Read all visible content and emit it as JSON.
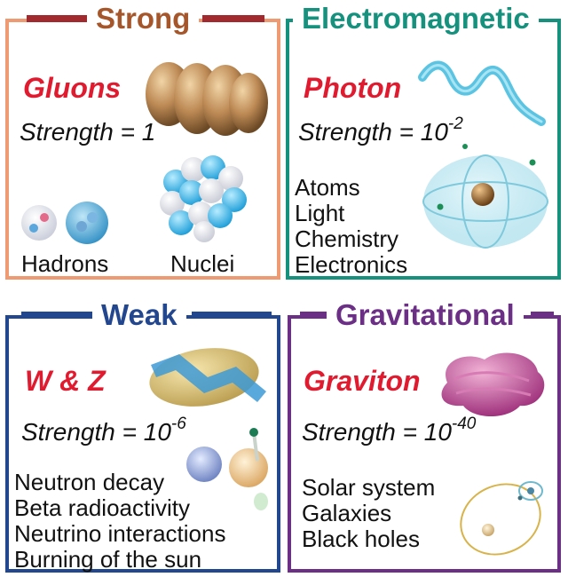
{
  "colors": {
    "strong": "#ee9a72",
    "strong_title": "#a5572b",
    "strong_bar": "#a12a2e",
    "em": "#15917e",
    "weak": "#23478f",
    "grav": "#6b2f86",
    "particle_text": "#e01b2f"
  },
  "strong": {
    "title": "Strong",
    "particle": "Gluons",
    "strength_label": "Strength = 1",
    "labels": [
      "Hadrons",
      "Nuclei"
    ]
  },
  "em": {
    "title": "Electromagnetic",
    "particle": "Photon",
    "strength_prefix": "Strength = 10",
    "strength_exp": "-2",
    "items": [
      "Atoms",
      "Light",
      "Chemistry",
      "Electronics"
    ]
  },
  "weak": {
    "title": "Weak",
    "particle": "W & Z",
    "strength_prefix": "Strength = 10",
    "strength_exp": "-6",
    "items": [
      "Neutron decay",
      "Beta radioactivity",
      "Neutrino interactions",
      "Burning of the sun"
    ]
  },
  "grav": {
    "title": "Gravitational",
    "particle": "Graviton",
    "strength_prefix": "Strength = 10",
    "strength_exp": "-40",
    "items": [
      "Solar system",
      "Galaxies",
      "Black holes"
    ]
  },
  "icons": [
    "gluon-blob-icon",
    "hadron-spheres-icon",
    "nucleus-cluster-icon",
    "photon-wave-icon",
    "atom-orbit-icon",
    "wz-boson-blob-icon",
    "neutron-decay-icon",
    "graviton-blob-icon",
    "solar-orbit-icon"
  ]
}
